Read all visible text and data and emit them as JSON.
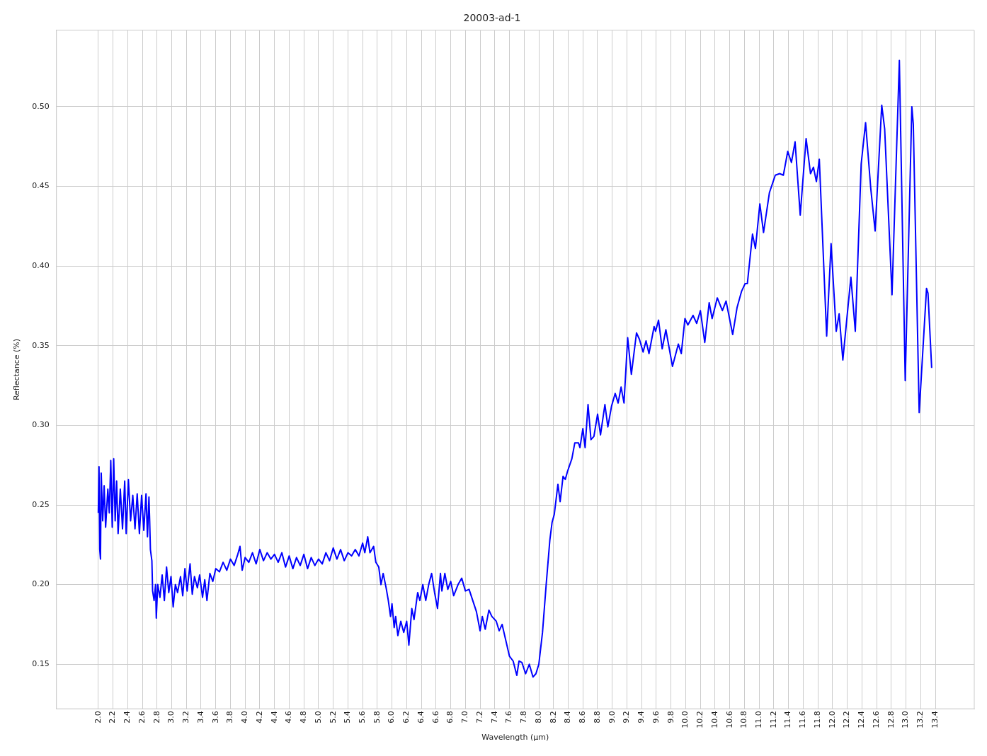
{
  "chart_data": {
    "type": "line",
    "title": "20003-ad-1",
    "xlabel": "Wavelength (μm)",
    "ylabel": "Reflectance (%)",
    "grid": true,
    "legend": false,
    "marker": "none",
    "line_style": "solid",
    "xlim": [
      1.43,
      13.93
    ],
    "ylim": [
      0.122,
      0.548
    ],
    "xticks": [
      {
        "value": 2.0,
        "label": "2.0"
      },
      {
        "value": 2.2,
        "label": "2.2"
      },
      {
        "value": 2.4,
        "label": "2.4"
      },
      {
        "value": 2.6,
        "label": "2.6"
      },
      {
        "value": 2.8,
        "label": "2.8"
      },
      {
        "value": 3.0,
        "label": "3.0"
      },
      {
        "value": 3.2,
        "label": "3.2"
      },
      {
        "value": 3.4,
        "label": "3.4"
      },
      {
        "value": 3.6,
        "label": "3.6"
      },
      {
        "value": 3.8,
        "label": "3.8"
      },
      {
        "value": 4.0,
        "label": "4.0"
      },
      {
        "value": 4.2,
        "label": "4.2"
      },
      {
        "value": 4.4,
        "label": "4.4"
      },
      {
        "value": 4.6,
        "label": "4.6"
      },
      {
        "value": 4.8,
        "label": "4.8"
      },
      {
        "value": 5.0,
        "label": "5.0"
      },
      {
        "value": 5.2,
        "label": "5.2"
      },
      {
        "value": 5.4,
        "label": "5.4"
      },
      {
        "value": 5.6,
        "label": "5.6"
      },
      {
        "value": 5.8,
        "label": "5.8"
      },
      {
        "value": 6.0,
        "label": "6.0"
      },
      {
        "value": 6.2,
        "label": "6.2"
      },
      {
        "value": 6.4,
        "label": "6.4"
      },
      {
        "value": 6.6,
        "label": "6.6"
      },
      {
        "value": 6.8,
        "label": "6.8"
      },
      {
        "value": 7.0,
        "label": "7.0"
      },
      {
        "value": 7.2,
        "label": "7.2"
      },
      {
        "value": 7.4,
        "label": "7.4"
      },
      {
        "value": 7.6,
        "label": "7.6"
      },
      {
        "value": 7.8,
        "label": "7.8"
      },
      {
        "value": 8.0,
        "label": "8.0"
      },
      {
        "value": 8.2,
        "label": "8.2"
      },
      {
        "value": 8.4,
        "label": "8.4"
      },
      {
        "value": 8.6,
        "label": "8.6"
      },
      {
        "value": 8.8,
        "label": "8.8"
      },
      {
        "value": 9.0,
        "label": "9.0"
      },
      {
        "value": 9.2,
        "label": "9.2"
      },
      {
        "value": 9.4,
        "label": "9.4"
      },
      {
        "value": 9.6,
        "label": "9.6"
      },
      {
        "value": 9.8,
        "label": "9.8"
      },
      {
        "value": 10.0,
        "label": "10.0"
      },
      {
        "value": 10.2,
        "label": "10.2"
      },
      {
        "value": 10.4,
        "label": "10.4"
      },
      {
        "value": 10.6,
        "label": "10.6"
      },
      {
        "value": 10.8,
        "label": "10.8"
      },
      {
        "value": 11.0,
        "label": "11.0"
      },
      {
        "value": 11.2,
        "label": "11.2"
      },
      {
        "value": 11.4,
        "label": "11.4"
      },
      {
        "value": 11.6,
        "label": "11.6"
      },
      {
        "value": 11.8,
        "label": "11.8"
      },
      {
        "value": 12.0,
        "label": "12.0"
      },
      {
        "value": 12.2,
        "label": "12.2"
      },
      {
        "value": 12.4,
        "label": "12.4"
      },
      {
        "value": 12.6,
        "label": "12.6"
      },
      {
        "value": 12.8,
        "label": "12.8"
      },
      {
        "value": 13.0,
        "label": "13.0"
      },
      {
        "value": 13.2,
        "label": "13.2"
      },
      {
        "value": 13.4,
        "label": "13.4"
      }
    ],
    "yticks": [
      {
        "value": 0.15,
        "label": "0.15"
      },
      {
        "value": 0.2,
        "label": "0.20"
      },
      {
        "value": 0.25,
        "label": "0.25"
      },
      {
        "value": 0.3,
        "label": "0.30"
      },
      {
        "value": 0.35,
        "label": "0.35"
      },
      {
        "value": 0.4,
        "label": "0.40"
      },
      {
        "value": 0.45,
        "label": "0.45"
      },
      {
        "value": 0.5,
        "label": "0.50"
      }
    ],
    "series": [
      {
        "color": "#0000ff",
        "x": [
          2.0,
          2.01,
          2.02,
          2.03,
          2.04,
          2.06,
          2.08,
          2.1,
          2.13,
          2.15,
          2.17,
          2.19,
          2.21,
          2.23,
          2.25,
          2.27,
          2.3,
          2.33,
          2.36,
          2.38,
          2.41,
          2.44,
          2.47,
          2.5,
          2.53,
          2.56,
          2.59,
          2.62,
          2.65,
          2.67,
          2.69,
          2.7,
          2.71,
          2.73,
          2.74,
          2.76,
          2.78,
          2.79,
          2.81,
          2.84,
          2.87,
          2.9,
          2.93,
          2.96,
          2.99,
          3.02,
          3.05,
          3.08,
          3.12,
          3.15,
          3.18,
          3.21,
          3.25,
          3.28,
          3.31,
          3.35,
          3.38,
          3.42,
          3.45,
          3.48,
          3.52,
          3.56,
          3.6,
          3.65,
          3.7,
          3.75,
          3.8,
          3.85,
          3.9,
          3.93,
          3.96,
          4.0,
          4.05,
          4.1,
          4.15,
          4.2,
          4.25,
          4.3,
          4.35,
          4.4,
          4.45,
          4.5,
          4.55,
          4.6,
          4.65,
          4.7,
          4.75,
          4.8,
          4.85,
          4.9,
          4.95,
          5.0,
          5.05,
          5.1,
          5.15,
          5.2,
          5.25,
          5.3,
          5.35,
          5.4,
          5.45,
          5.5,
          5.55,
          5.6,
          5.63,
          5.67,
          5.7,
          5.75,
          5.78,
          5.82,
          5.85,
          5.88,
          5.92,
          5.95,
          5.98,
          6.0,
          6.03,
          6.05,
          6.08,
          6.12,
          6.16,
          6.2,
          6.23,
          6.27,
          6.3,
          6.35,
          6.38,
          6.42,
          6.46,
          6.5,
          6.54,
          6.58,
          6.62,
          6.66,
          6.68,
          6.72,
          6.76,
          6.8,
          6.84,
          6.9,
          6.95,
          7.0,
          7.05,
          7.1,
          7.15,
          7.2,
          7.23,
          7.27,
          7.32,
          7.36,
          7.42,
          7.46,
          7.5,
          7.55,
          7.6,
          7.65,
          7.7,
          7.73,
          7.77,
          7.82,
          7.87,
          7.92,
          7.96,
          8.0,
          8.05,
          8.1,
          8.15,
          8.18,
          8.21,
          8.26,
          8.29,
          8.33,
          8.36,
          8.39,
          8.45,
          8.49,
          8.54,
          8.56,
          8.6,
          8.63,
          8.67,
          8.71,
          8.75,
          8.8,
          8.84,
          8.9,
          8.94,
          8.99,
          9.04,
          9.08,
          9.12,
          9.16,
          9.21,
          9.26,
          9.33,
          9.37,
          9.42,
          9.46,
          9.5,
          9.57,
          9.59,
          9.63,
          9.68,
          9.73,
          9.82,
          9.9,
          9.94,
          9.99,
          10.03,
          10.1,
          10.15,
          10.2,
          10.26,
          10.32,
          10.36,
          10.43,
          10.5,
          10.55,
          10.64,
          10.7,
          10.76,
          10.81,
          10.84,
          10.91,
          10.95,
          11.01,
          11.06,
          11.14,
          11.22,
          11.28,
          11.33,
          11.39,
          11.44,
          11.49,
          11.56,
          11.64,
          11.7,
          11.74,
          11.78,
          11.82,
          11.92,
          11.98,
          12.05,
          12.09,
          12.14,
          12.25,
          12.31,
          12.39,
          12.45,
          12.52,
          12.58,
          12.67,
          12.71,
          12.81,
          12.91,
          12.99,
          13.08,
          13.1,
          13.18,
          13.28,
          13.3,
          13.35
        ],
        "values": [
          0.245,
          0.274,
          0.222,
          0.216,
          0.27,
          0.24,
          0.262,
          0.236,
          0.26,
          0.245,
          0.278,
          0.236,
          0.279,
          0.24,
          0.265,
          0.232,
          0.26,
          0.235,
          0.265,
          0.232,
          0.266,
          0.24,
          0.256,
          0.235,
          0.257,
          0.232,
          0.256,
          0.234,
          0.257,
          0.23,
          0.255,
          0.24,
          0.222,
          0.215,
          0.196,
          0.19,
          0.2,
          0.179,
          0.2,
          0.192,
          0.206,
          0.19,
          0.211,
          0.195,
          0.205,
          0.186,
          0.2,
          0.195,
          0.205,
          0.193,
          0.21,
          0.196,
          0.213,
          0.194,
          0.205,
          0.198,
          0.206,
          0.192,
          0.203,
          0.19,
          0.207,
          0.202,
          0.21,
          0.208,
          0.214,
          0.209,
          0.216,
          0.212,
          0.219,
          0.224,
          0.209,
          0.217,
          0.214,
          0.22,
          0.213,
          0.222,
          0.215,
          0.22,
          0.216,
          0.219,
          0.214,
          0.22,
          0.211,
          0.218,
          0.21,
          0.217,
          0.212,
          0.219,
          0.21,
          0.217,
          0.212,
          0.216,
          0.213,
          0.22,
          0.215,
          0.223,
          0.216,
          0.222,
          0.215,
          0.22,
          0.218,
          0.222,
          0.218,
          0.226,
          0.22,
          0.23,
          0.22,
          0.224,
          0.214,
          0.211,
          0.2,
          0.207,
          0.198,
          0.19,
          0.18,
          0.188,
          0.173,
          0.18,
          0.168,
          0.177,
          0.17,
          0.177,
          0.162,
          0.185,
          0.178,
          0.195,
          0.19,
          0.2,
          0.19,
          0.2,
          0.207,
          0.195,
          0.185,
          0.207,
          0.196,
          0.207,
          0.197,
          0.202,
          0.193,
          0.2,
          0.204,
          0.196,
          0.197,
          0.19,
          0.183,
          0.171,
          0.18,
          0.172,
          0.184,
          0.18,
          0.177,
          0.171,
          0.175,
          0.165,
          0.155,
          0.152,
          0.143,
          0.152,
          0.151,
          0.144,
          0.15,
          0.142,
          0.144,
          0.15,
          0.17,
          0.2,
          0.228,
          0.239,
          0.244,
          0.263,
          0.252,
          0.268,
          0.266,
          0.271,
          0.279,
          0.289,
          0.289,
          0.286,
          0.298,
          0.286,
          0.313,
          0.291,
          0.293,
          0.307,
          0.294,
          0.313,
          0.299,
          0.312,
          0.32,
          0.314,
          0.324,
          0.314,
          0.355,
          0.332,
          0.358,
          0.354,
          0.346,
          0.353,
          0.345,
          0.362,
          0.359,
          0.366,
          0.348,
          0.36,
          0.337,
          0.351,
          0.345,
          0.367,
          0.363,
          0.369,
          0.364,
          0.372,
          0.352,
          0.377,
          0.367,
          0.38,
          0.372,
          0.378,
          0.357,
          0.374,
          0.384,
          0.389,
          0.389,
          0.42,
          0.411,
          0.439,
          0.421,
          0.446,
          0.457,
          0.458,
          0.457,
          0.472,
          0.465,
          0.478,
          0.432,
          0.48,
          0.458,
          0.462,
          0.453,
          0.467,
          0.356,
          0.414,
          0.359,
          0.37,
          0.341,
          0.393,
          0.359,
          0.464,
          0.49,
          0.449,
          0.422,
          0.501,
          0.486,
          0.382,
          0.529,
          0.328,
          0.5,
          0.489,
          0.308,
          0.386,
          0.383,
          0.336
        ]
      }
    ]
  }
}
